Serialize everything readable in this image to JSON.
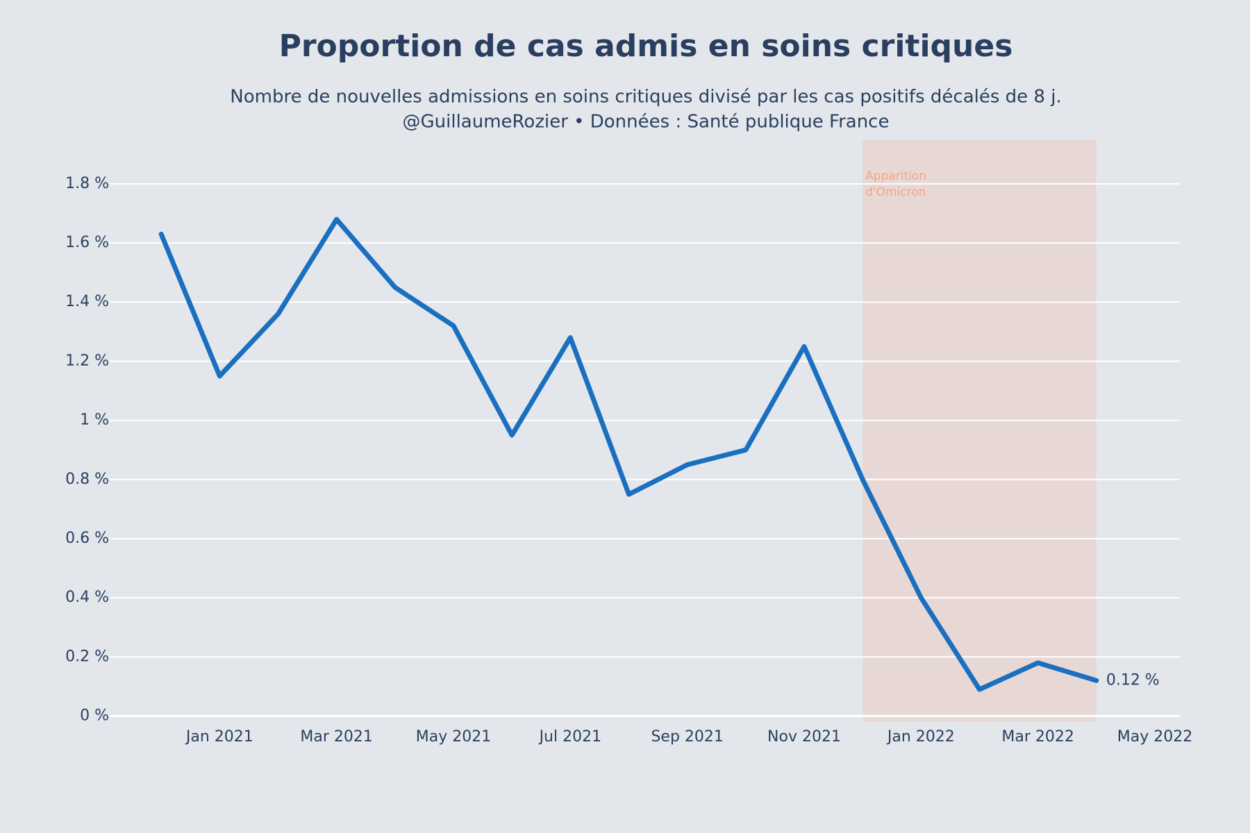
{
  "chart_data": {
    "type": "line",
    "title": "Proportion de cas admis en soins critiques",
    "subtitle": [
      "Nombre de nouvelles admissions en soins critiques divisé par les cas positifs décalés de 8 j.",
      "@GuillaumeRozier • Données : Santé publique France"
    ],
    "x": [
      "2020-12",
      "2021-01",
      "2021-02",
      "2021-03",
      "2021-04",
      "2021-05",
      "2021-06",
      "2021-07",
      "2021-08",
      "2021-09",
      "2021-10",
      "2021-11",
      "2021-12",
      "2022-01",
      "2022-02",
      "2022-03",
      "2022-04"
    ],
    "series": [
      {
        "color": "#1a6fc0",
        "values": [
          1.63,
          1.15,
          1.36,
          1.68,
          1.45,
          1.32,
          0.95,
          1.28,
          0.75,
          0.85,
          0.9,
          1.25,
          0.8,
          0.4,
          0.09,
          0.18,
          0.12
        ],
        "value_labels": [
          null,
          null,
          null,
          null,
          null,
          null,
          null,
          null,
          null,
          null,
          null,
          null,
          null,
          null,
          null,
          null,
          "0.12 %"
        ]
      }
    ],
    "xlim": [
      "2020-11",
      "2022-05"
    ],
    "xticks": [
      {
        "value": "2021-01",
        "label": "Jan 2021"
      },
      {
        "value": "2021-03",
        "label": "Mar 2021"
      },
      {
        "value": "2021-05",
        "label": "May 2021"
      },
      {
        "value": "2021-07",
        "label": "Jul 2021"
      },
      {
        "value": "2021-09",
        "label": "Sep 2021"
      },
      {
        "value": "2021-11",
        "label": "Nov 2021"
      },
      {
        "value": "2022-01",
        "label": "Jan 2022"
      },
      {
        "value": "2022-03",
        "label": "Mar 2022"
      },
      {
        "value": "2022-05",
        "label": "May 2022"
      }
    ],
    "ylim": [
      -0.02,
      1.95
    ],
    "yticks": [
      {
        "value": 0,
        "label": "0 %"
      },
      {
        "value": 0.2,
        "label": "0.2 %"
      },
      {
        "value": 0.4,
        "label": "0.4 %"
      },
      {
        "value": 0.6,
        "label": "0.6 %"
      },
      {
        "value": 0.8,
        "label": "0.8 %"
      },
      {
        "value": 1,
        "label": "1 %"
      },
      {
        "value": 1.2,
        "label": "1.2 %"
      },
      {
        "value": 1.4,
        "label": "1.4 %"
      },
      {
        "value": 1.6,
        "label": "1.6 %"
      },
      {
        "value": 1.8,
        "label": "1.8 %"
      }
    ],
    "grid": true,
    "shaded_region": {
      "label": [
        "Apparition",
        "d'Omicron"
      ],
      "xlim": [
        "2021-12",
        "2022-04"
      ],
      "color": "#f4a582"
    }
  }
}
